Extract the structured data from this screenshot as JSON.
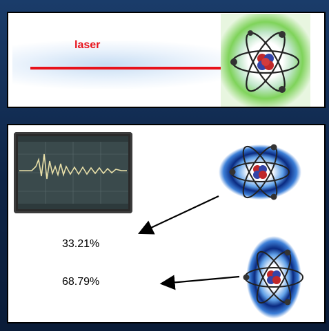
{
  "top_panel": {
    "laser_label": "laser",
    "laser_color": "#e8121b",
    "glow_color": "#7fd35a"
  },
  "bottom_panel": {
    "percentages": [
      "33.21%",
      "68.79%"
    ],
    "glow_color": "#1c5bd6"
  }
}
